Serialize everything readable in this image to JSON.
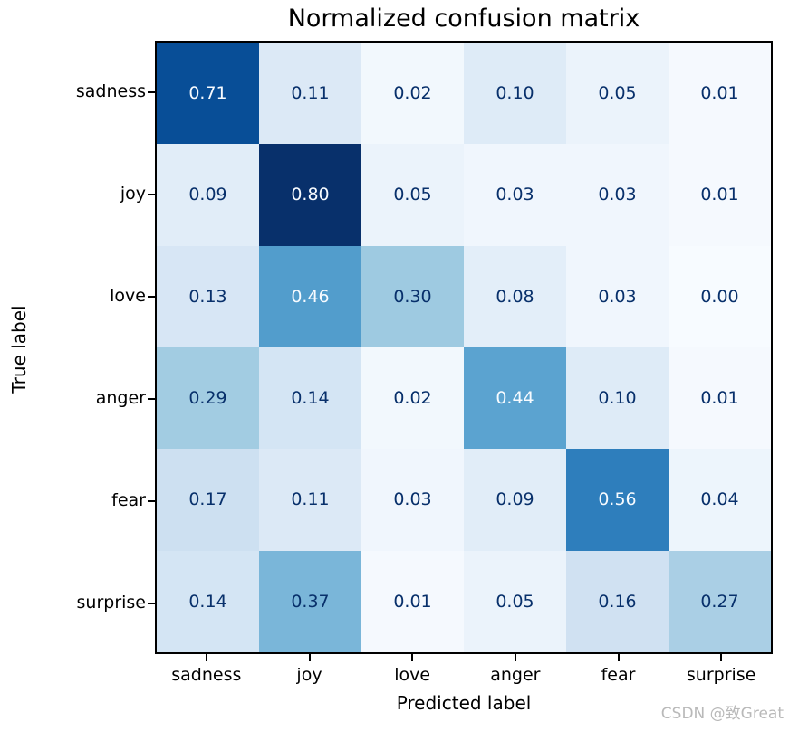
{
  "figure": {
    "watermark": "CSDN @致Great",
    "watermark_color": "#b9b9b9",
    "background": "#ffffff"
  },
  "chart_data": {
    "type": "heatmap",
    "title": "Normalized confusion matrix",
    "xlabel": "Predicted label",
    "ylabel": "True label",
    "categories": [
      "sadness",
      "joy",
      "love",
      "anger",
      "fear",
      "surprise"
    ],
    "x_tick_labels": [
      "sadness",
      "joy",
      "love",
      "anger",
      "fear",
      "surprise"
    ],
    "y_tick_labels": [
      "sadness",
      "joy",
      "love",
      "anger",
      "fear",
      "surprise"
    ],
    "matrix": [
      [
        0.71,
        0.11,
        0.02,
        0.1,
        0.05,
        0.01
      ],
      [
        0.09,
        0.8,
        0.05,
        0.03,
        0.03,
        0.01
      ],
      [
        0.13,
        0.46,
        0.3,
        0.08,
        0.03,
        0.0
      ],
      [
        0.29,
        0.14,
        0.02,
        0.44,
        0.1,
        0.01
      ],
      [
        0.17,
        0.11,
        0.03,
        0.09,
        0.56,
        0.04
      ],
      [
        0.14,
        0.37,
        0.01,
        0.05,
        0.16,
        0.27
      ]
    ],
    "value_decimals": 2,
    "colormap": {
      "name": "Blues",
      "vmin": 0.0,
      "vmax": 0.8,
      "anchors": [
        [
          0.0,
          "#f7fbff"
        ],
        [
          0.125,
          "#deebf7"
        ],
        [
          0.25,
          "#c6dbef"
        ],
        [
          0.375,
          "#9ecae1"
        ],
        [
          0.5,
          "#6baed6"
        ],
        [
          0.625,
          "#4292c6"
        ],
        [
          0.75,
          "#2171b5"
        ],
        [
          0.875,
          "#08519c"
        ],
        [
          1.0,
          "#08306b"
        ]
      ]
    },
    "cell_text_colors": {
      "light": "#f7fbff",
      "dark": "#08306b",
      "light_text_threshold": 0.4
    },
    "axes": {
      "border_color": "#000000",
      "grid": false,
      "legend": null
    }
  }
}
